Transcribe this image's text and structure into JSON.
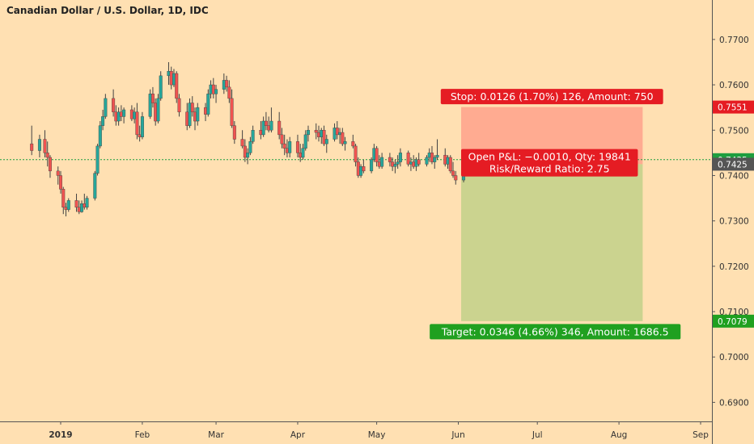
{
  "chart_data": {
    "type": "candlestick",
    "title": "Canadian Dollar / U.S. Dollar, 1D, IDC",
    "x_tick_labels": [
      "2019",
      "Feb",
      "Mar",
      "Apr",
      "May",
      "Jun",
      "Jul",
      "Aug",
      "Sep"
    ],
    "y_tick_labels": [
      "0.7700",
      "0.7600",
      "0.7500",
      "0.7400",
      "0.7300",
      "0.7200",
      "0.7100",
      "0.7000",
      "0.6900"
    ],
    "y_ticks": [
      0.77,
      0.76,
      0.75,
      0.74,
      0.73,
      0.72,
      0.71,
      0.7,
      0.69
    ],
    "ylim": [
      0.6858,
      0.7787
    ],
    "grid": false,
    "colors": {
      "background": "#ffe0b2",
      "up": "#26a69a",
      "down": "#ef5350",
      "wick": "#424242",
      "stop_zone": "#ffab91",
      "target_zone": "#cbd38f",
      "stop_label": "#e51c23",
      "target_label": "#20a020",
      "current_line": "#1e9e3f",
      "entry_badge": "#555555"
    },
    "candles": [
      {
        "date": "2018-12-21",
        "o": 0.747,
        "h": 0.751,
        "l": 0.7445,
        "c": 0.7455
      },
      {
        "date": "2018-12-24",
        "o": 0.7455,
        "h": 0.749,
        "l": 0.744,
        "c": 0.748
      },
      {
        "date": "2018-12-26",
        "o": 0.748,
        "h": 0.75,
        "l": 0.744,
        "c": 0.745
      },
      {
        "date": "2018-12-27",
        "o": 0.745,
        "h": 0.7475,
        "l": 0.742,
        "c": 0.744
      },
      {
        "date": "2018-12-28",
        "o": 0.744,
        "h": 0.7445,
        "l": 0.7395,
        "c": 0.741
      },
      {
        "date": "2018-12-31",
        "o": 0.741,
        "h": 0.742,
        "l": 0.738,
        "c": 0.74
      },
      {
        "date": "2019-01-01",
        "o": 0.74,
        "h": 0.741,
        "l": 0.736,
        "c": 0.737
      },
      {
        "date": "2019-01-02",
        "o": 0.737,
        "h": 0.7375,
        "l": 0.7315,
        "c": 0.733
      },
      {
        "date": "2019-01-03",
        "o": 0.733,
        "h": 0.734,
        "l": 0.731,
        "c": 0.7325
      },
      {
        "date": "2019-01-04",
        "o": 0.7325,
        "h": 0.735,
        "l": 0.732,
        "c": 0.7345
      },
      {
        "date": "2019-01-07",
        "o": 0.7345,
        "h": 0.736,
        "l": 0.732,
        "c": 0.733
      },
      {
        "date": "2019-01-08",
        "o": 0.733,
        "h": 0.7345,
        "l": 0.7315,
        "c": 0.732
      },
      {
        "date": "2019-01-09",
        "o": 0.732,
        "h": 0.7345,
        "l": 0.7318,
        "c": 0.7338
      },
      {
        "date": "2019-01-10",
        "o": 0.7338,
        "h": 0.736,
        "l": 0.7325,
        "c": 0.733
      },
      {
        "date": "2019-01-11",
        "o": 0.733,
        "h": 0.7355,
        "l": 0.7325,
        "c": 0.735
      },
      {
        "date": "2019-01-14",
        "o": 0.735,
        "h": 0.741,
        "l": 0.7345,
        "c": 0.7405
      },
      {
        "date": "2019-01-15",
        "o": 0.7405,
        "h": 0.747,
        "l": 0.74,
        "c": 0.7465
      },
      {
        "date": "2019-01-16",
        "o": 0.7465,
        "h": 0.752,
        "l": 0.746,
        "c": 0.751
      },
      {
        "date": "2019-01-17",
        "o": 0.751,
        "h": 0.7545,
        "l": 0.75,
        "c": 0.753
      },
      {
        "date": "2019-01-18",
        "o": 0.753,
        "h": 0.758,
        "l": 0.7525,
        "c": 0.757
      },
      {
        "date": "2019-01-21",
        "o": 0.757,
        "h": 0.759,
        "l": 0.753,
        "c": 0.754
      },
      {
        "date": "2019-01-22",
        "o": 0.754,
        "h": 0.7555,
        "l": 0.751,
        "c": 0.752
      },
      {
        "date": "2019-01-23",
        "o": 0.752,
        "h": 0.755,
        "l": 0.751,
        "c": 0.754
      },
      {
        "date": "2019-01-24",
        "o": 0.754,
        "h": 0.7555,
        "l": 0.752,
        "c": 0.753
      },
      {
        "date": "2019-01-25",
        "o": 0.753,
        "h": 0.755,
        "l": 0.7515,
        "c": 0.7545
      },
      {
        "date": "2019-01-28",
        "o": 0.7545,
        "h": 0.7555,
        "l": 0.752,
        "c": 0.7525
      },
      {
        "date": "2019-01-29",
        "o": 0.7525,
        "h": 0.755,
        "l": 0.7515,
        "c": 0.754
      },
      {
        "date": "2019-01-30",
        "o": 0.754,
        "h": 0.756,
        "l": 0.748,
        "c": 0.749
      },
      {
        "date": "2019-01-31",
        "o": 0.749,
        "h": 0.751,
        "l": 0.7475,
        "c": 0.7485
      },
      {
        "date": "2019-02-01",
        "o": 0.7485,
        "h": 0.754,
        "l": 0.748,
        "c": 0.753
      },
      {
        "date": "2019-02-04",
        "o": 0.753,
        "h": 0.759,
        "l": 0.7525,
        "c": 0.758
      },
      {
        "date": "2019-02-05",
        "o": 0.758,
        "h": 0.7595,
        "l": 0.755,
        "c": 0.756
      },
      {
        "date": "2019-02-06",
        "o": 0.756,
        "h": 0.757,
        "l": 0.751,
        "c": 0.752
      },
      {
        "date": "2019-02-07",
        "o": 0.752,
        "h": 0.758,
        "l": 0.7515,
        "c": 0.757
      },
      {
        "date": "2019-02-08",
        "o": 0.757,
        "h": 0.763,
        "l": 0.7565,
        "c": 0.762
      },
      {
        "date": "2019-02-11",
        "o": 0.762,
        "h": 0.765,
        "l": 0.76,
        "c": 0.763
      },
      {
        "date": "2019-02-12",
        "o": 0.763,
        "h": 0.764,
        "l": 0.759,
        "c": 0.76
      },
      {
        "date": "2019-02-13",
        "o": 0.76,
        "h": 0.7635,
        "l": 0.7595,
        "c": 0.7625
      },
      {
        "date": "2019-02-14",
        "o": 0.7625,
        "h": 0.763,
        "l": 0.756,
        "c": 0.757
      },
      {
        "date": "2019-02-15",
        "o": 0.757,
        "h": 0.758,
        "l": 0.753,
        "c": 0.754
      },
      {
        "date": "2019-02-18",
        "o": 0.754,
        "h": 0.756,
        "l": 0.75,
        "c": 0.751
      },
      {
        "date": "2019-02-19",
        "o": 0.751,
        "h": 0.757,
        "l": 0.7505,
        "c": 0.756
      },
      {
        "date": "2019-02-20",
        "o": 0.756,
        "h": 0.7575,
        "l": 0.753,
        "c": 0.754
      },
      {
        "date": "2019-02-21",
        "o": 0.754,
        "h": 0.755,
        "l": 0.75,
        "c": 0.752
      },
      {
        "date": "2019-02-22",
        "o": 0.752,
        "h": 0.756,
        "l": 0.751,
        "c": 0.755
      },
      {
        "date": "2019-02-25",
        "o": 0.755,
        "h": 0.756,
        "l": 0.752,
        "c": 0.7535
      },
      {
        "date": "2019-02-26",
        "o": 0.7535,
        "h": 0.759,
        "l": 0.753,
        "c": 0.758
      },
      {
        "date": "2019-02-27",
        "o": 0.758,
        "h": 0.761,
        "l": 0.757,
        "c": 0.76
      },
      {
        "date": "2019-02-28",
        "o": 0.76,
        "h": 0.7615,
        "l": 0.757,
        "c": 0.758
      },
      {
        "date": "2019-03-01",
        "o": 0.758,
        "h": 0.76,
        "l": 0.756,
        "c": 0.759
      },
      {
        "date": "2019-03-04",
        "o": 0.759,
        "h": 0.7625,
        "l": 0.758,
        "c": 0.761
      },
      {
        "date": "2019-03-05",
        "o": 0.761,
        "h": 0.762,
        "l": 0.7585,
        "c": 0.7595
      },
      {
        "date": "2019-03-06",
        "o": 0.7595,
        "h": 0.761,
        "l": 0.756,
        "c": 0.757
      },
      {
        "date": "2019-03-07",
        "o": 0.757,
        "h": 0.759,
        "l": 0.7505,
        "c": 0.751
      },
      {
        "date": "2019-03-08",
        "o": 0.751,
        "h": 0.752,
        "l": 0.747,
        "c": 0.748
      },
      {
        "date": "2019-03-11",
        "o": 0.748,
        "h": 0.75,
        "l": 0.746,
        "c": 0.7465
      },
      {
        "date": "2019-03-12",
        "o": 0.7465,
        "h": 0.748,
        "l": 0.743,
        "c": 0.744
      },
      {
        "date": "2019-03-13",
        "o": 0.744,
        "h": 0.746,
        "l": 0.7425,
        "c": 0.745
      },
      {
        "date": "2019-03-14",
        "o": 0.745,
        "h": 0.7485,
        "l": 0.7445,
        "c": 0.7475
      },
      {
        "date": "2019-03-15",
        "o": 0.7475,
        "h": 0.751,
        "l": 0.747,
        "c": 0.75
      },
      {
        "date": "2019-03-18",
        "o": 0.75,
        "h": 0.752,
        "l": 0.748,
        "c": 0.749
      },
      {
        "date": "2019-03-19",
        "o": 0.749,
        "h": 0.753,
        "l": 0.7485,
        "c": 0.752
      },
      {
        "date": "2019-03-20",
        "o": 0.752,
        "h": 0.754,
        "l": 0.75,
        "c": 0.751
      },
      {
        "date": "2019-03-21",
        "o": 0.751,
        "h": 0.753,
        "l": 0.7495,
        "c": 0.75
      },
      {
        "date": "2019-03-22",
        "o": 0.75,
        "h": 0.755,
        "l": 0.7495,
        "c": 0.752
      },
      {
        "date": "2019-03-25",
        "o": 0.752,
        "h": 0.754,
        "l": 0.748,
        "c": 0.749
      },
      {
        "date": "2019-03-26",
        "o": 0.749,
        "h": 0.7505,
        "l": 0.746,
        "c": 0.747
      },
      {
        "date": "2019-03-27",
        "o": 0.747,
        "h": 0.749,
        "l": 0.7445,
        "c": 0.746
      },
      {
        "date": "2019-03-28",
        "o": 0.746,
        "h": 0.748,
        "l": 0.744,
        "c": 0.745
      },
      {
        "date": "2019-03-29",
        "o": 0.745,
        "h": 0.7485,
        "l": 0.744,
        "c": 0.7475
      },
      {
        "date": "2019-04-01",
        "o": 0.7475,
        "h": 0.749,
        "l": 0.744,
        "c": 0.745
      },
      {
        "date": "2019-04-02",
        "o": 0.745,
        "h": 0.747,
        "l": 0.743,
        "c": 0.744
      },
      {
        "date": "2019-04-03",
        "o": 0.744,
        "h": 0.747,
        "l": 0.7435,
        "c": 0.746
      },
      {
        "date": "2019-04-04",
        "o": 0.746,
        "h": 0.75,
        "l": 0.7455,
        "c": 0.749
      },
      {
        "date": "2019-04-05",
        "o": 0.749,
        "h": 0.751,
        "l": 0.7475,
        "c": 0.75
      },
      {
        "date": "2019-04-08",
        "o": 0.75,
        "h": 0.7515,
        "l": 0.748,
        "c": 0.7495
      },
      {
        "date": "2019-04-09",
        "o": 0.7495,
        "h": 0.751,
        "l": 0.7475,
        "c": 0.7485
      },
      {
        "date": "2019-04-10",
        "o": 0.7485,
        "h": 0.7505,
        "l": 0.747,
        "c": 0.75
      },
      {
        "date": "2019-04-11",
        "o": 0.75,
        "h": 0.751,
        "l": 0.7465,
        "c": 0.747
      },
      {
        "date": "2019-04-12",
        "o": 0.747,
        "h": 0.749,
        "l": 0.745,
        "c": 0.748
      },
      {
        "date": "2019-04-15",
        "o": 0.748,
        "h": 0.7515,
        "l": 0.7475,
        "c": 0.7505
      },
      {
        "date": "2019-04-16",
        "o": 0.7505,
        "h": 0.752,
        "l": 0.748,
        "c": 0.749
      },
      {
        "date": "2019-04-17",
        "o": 0.749,
        "h": 0.7505,
        "l": 0.747,
        "c": 0.7495
      },
      {
        "date": "2019-04-18",
        "o": 0.7495,
        "h": 0.7505,
        "l": 0.7465,
        "c": 0.747
      },
      {
        "date": "2019-04-19",
        "o": 0.747,
        "h": 0.7485,
        "l": 0.7455,
        "c": 0.7475
      },
      {
        "date": "2019-04-22",
        "o": 0.7475,
        "h": 0.749,
        "l": 0.746,
        "c": 0.7465
      },
      {
        "date": "2019-04-23",
        "o": 0.7465,
        "h": 0.747,
        "l": 0.742,
        "c": 0.743
      },
      {
        "date": "2019-04-24",
        "o": 0.743,
        "h": 0.744,
        "l": 0.7395,
        "c": 0.74
      },
      {
        "date": "2019-04-25",
        "o": 0.74,
        "h": 0.7425,
        "l": 0.7395,
        "c": 0.742
      },
      {
        "date": "2019-04-26",
        "o": 0.742,
        "h": 0.7435,
        "l": 0.7405,
        "c": 0.741
      },
      {
        "date": "2019-04-29",
        "o": 0.741,
        "h": 0.744,
        "l": 0.7405,
        "c": 0.7435
      },
      {
        "date": "2019-04-30",
        "o": 0.7435,
        "h": 0.747,
        "l": 0.743,
        "c": 0.746
      },
      {
        "date": "2019-05-01",
        "o": 0.746,
        "h": 0.7465,
        "l": 0.742,
        "c": 0.743
      },
      {
        "date": "2019-05-02",
        "o": 0.743,
        "h": 0.7445,
        "l": 0.7415,
        "c": 0.742
      },
      {
        "date": "2019-05-03",
        "o": 0.742,
        "h": 0.745,
        "l": 0.7415,
        "c": 0.744
      },
      {
        "date": "2019-05-06",
        "o": 0.744,
        "h": 0.745,
        "l": 0.742,
        "c": 0.743
      },
      {
        "date": "2019-05-07",
        "o": 0.743,
        "h": 0.744,
        "l": 0.741,
        "c": 0.742
      },
      {
        "date": "2019-05-08",
        "o": 0.742,
        "h": 0.7435,
        "l": 0.7405,
        "c": 0.7425
      },
      {
        "date": "2019-05-09",
        "o": 0.7425,
        "h": 0.7445,
        "l": 0.7415,
        "c": 0.743
      },
      {
        "date": "2019-05-10",
        "o": 0.743,
        "h": 0.746,
        "l": 0.742,
        "c": 0.745
      },
      {
        "date": "2019-05-13",
        "o": 0.745,
        "h": 0.7455,
        "l": 0.742,
        "c": 0.7425
      },
      {
        "date": "2019-05-14",
        "o": 0.7425,
        "h": 0.744,
        "l": 0.741,
        "c": 0.743
      },
      {
        "date": "2019-05-15",
        "o": 0.743,
        "h": 0.7445,
        "l": 0.7415,
        "c": 0.742
      },
      {
        "date": "2019-05-16",
        "o": 0.742,
        "h": 0.744,
        "l": 0.741,
        "c": 0.7435
      },
      {
        "date": "2019-05-17",
        "o": 0.7435,
        "h": 0.745,
        "l": 0.742,
        "c": 0.7425
      },
      {
        "date": "2019-05-20",
        "o": 0.7425,
        "h": 0.7445,
        "l": 0.742,
        "c": 0.744
      },
      {
        "date": "2019-05-21",
        "o": 0.744,
        "h": 0.746,
        "l": 0.743,
        "c": 0.745
      },
      {
        "date": "2019-05-22",
        "o": 0.745,
        "h": 0.7465,
        "l": 0.7425,
        "c": 0.743
      },
      {
        "date": "2019-05-23",
        "o": 0.743,
        "h": 0.7445,
        "l": 0.7415,
        "c": 0.744
      },
      {
        "date": "2019-05-24",
        "o": 0.744,
        "h": 0.748,
        "l": 0.7435,
        "c": 0.7445
      },
      {
        "date": "2019-05-27",
        "o": 0.7445,
        "h": 0.746,
        "l": 0.742,
        "c": 0.7425
      },
      {
        "date": "2019-05-28",
        "o": 0.7425,
        "h": 0.7445,
        "l": 0.7415,
        "c": 0.744
      },
      {
        "date": "2019-05-29",
        "o": 0.744,
        "h": 0.7445,
        "l": 0.7405,
        "c": 0.741
      },
      {
        "date": "2019-05-30",
        "o": 0.741,
        "h": 0.743,
        "l": 0.7395,
        "c": 0.74
      },
      {
        "date": "2019-05-31",
        "o": 0.74,
        "h": 0.741,
        "l": 0.738,
        "c": 0.739
      },
      {
        "date": "2019-06-03",
        "o": 0.739,
        "h": 0.7435,
        "l": 0.7385,
        "c": 0.7425
      }
    ],
    "price_labels": [
      {
        "value": 0.7551,
        "text": "0.7551",
        "kind": "stop"
      },
      {
        "value": 0.7435,
        "text": "0.7435",
        "kind": "current"
      },
      {
        "value": 0.7425,
        "text": "0.7425",
        "kind": "entry"
      },
      {
        "value": 0.7079,
        "text": "0.7079",
        "kind": "target"
      }
    ],
    "position": {
      "entry": 0.7425,
      "stop": 0.7551,
      "target": 0.7079,
      "start_date": "2019-06-03",
      "end_date": "2019-08-10",
      "stop_label": "Stop: 0.0126 (1.70%) 126, Amount: 750",
      "target_label": "Target: 0.0346 (4.66%) 346, Amount: 1686.5",
      "pnl_label_line1": "Open P&L: −0.0010, Qty: 19841",
      "pnl_label_line2": "Risk/Reward Ratio: 2.75"
    },
    "current_price": 0.7435
  }
}
